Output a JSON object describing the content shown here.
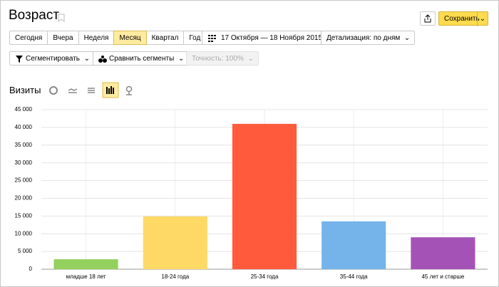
{
  "ui": {
    "title": "Возраст",
    "save": "Сохранить",
    "periods": [
      "Сегодня",
      "Вчера",
      "Неделя",
      "Месяц",
      "Квартал",
      "Год"
    ],
    "date_range": "17 Октября — 18 Ноября 2015",
    "detail": "Детализация: по дням",
    "segment": "Сегментировать",
    "compare": "Сравнить сегменты",
    "accuracy": "Точность: 100%",
    "metric": "Визиты"
  },
  "chart_data": {
    "type": "bar",
    "categories": [
      "младше 18 лет",
      "18-24 года",
      "25-34 года",
      "35-44 года",
      "45 лет и старше"
    ],
    "values": [
      2800,
      14900,
      41000,
      13500,
      9000
    ],
    "colors": [
      "#94d05d",
      "#ffd966",
      "#ff5a3c",
      "#74b4ea",
      "#a552b6"
    ],
    "ylim": [
      0,
      45000
    ],
    "yticks": [
      0,
      {
        "value": 5000,
        "label": "5 000"
      },
      {
        "value": 10000,
        "label": "10 000"
      },
      {
        "value": 15000,
        "label": "15 000"
      },
      {
        "value": 20000,
        "label": "20 000"
      },
      {
        "value": 25000,
        "label": "25 000"
      },
      {
        "value": 30000,
        "label": "30 000"
      },
      {
        "value": 35000,
        "label": "35 000"
      },
      {
        "value": 40000,
        "label": "40 000"
      },
      {
        "value": 45000,
        "label": "45 000"
      }
    ],
    "grid": true
  }
}
